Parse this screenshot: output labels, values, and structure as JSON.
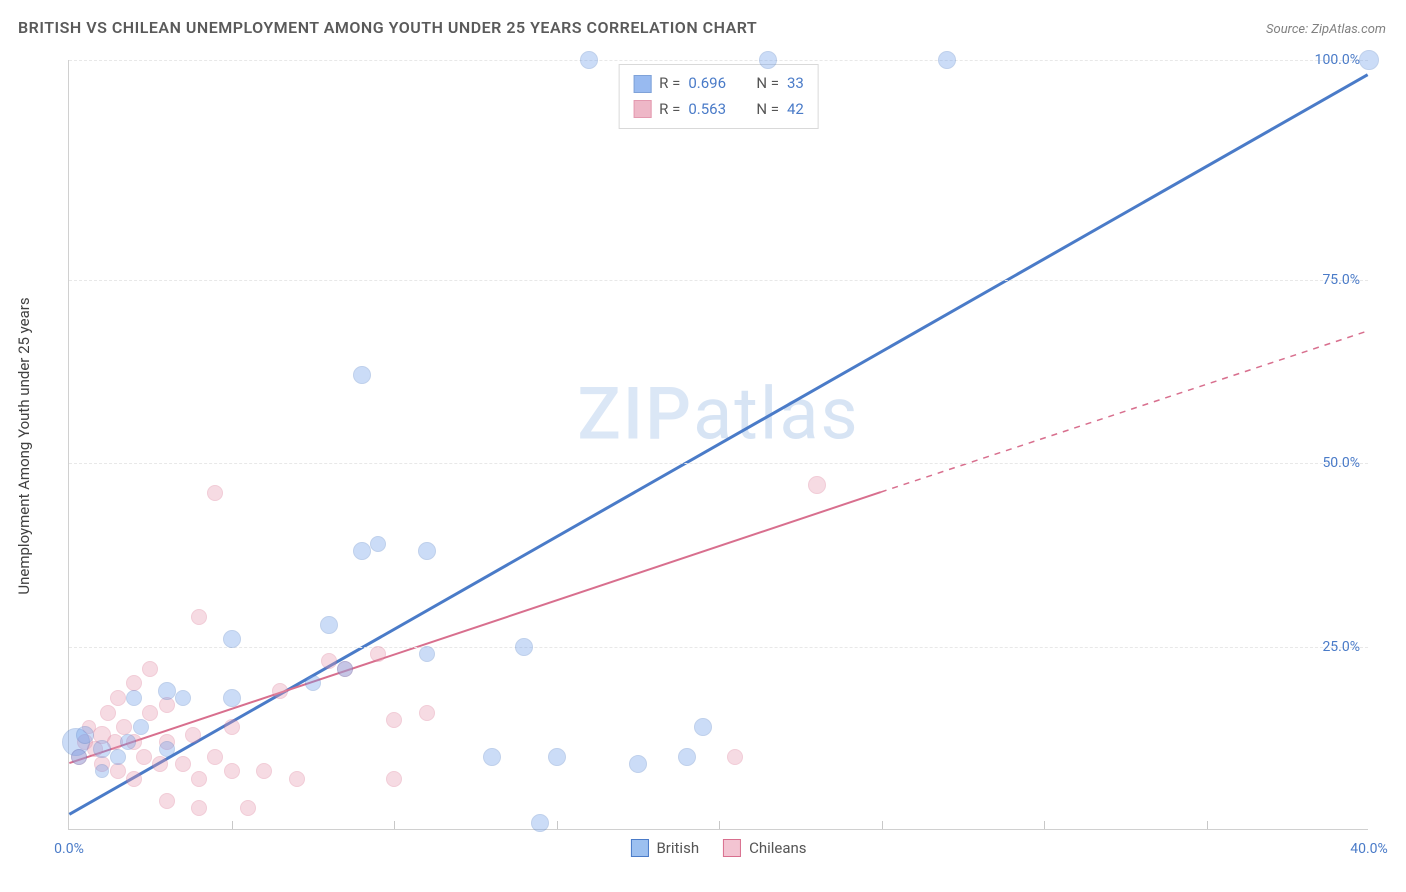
{
  "title": "BRITISH VS CHILEAN UNEMPLOYMENT AMONG YOUTH UNDER 25 YEARS CORRELATION CHART",
  "source": "Source: ZipAtlas.com",
  "ylabel": "Unemployment Among Youth under 25 years",
  "watermark_strong": "ZIP",
  "watermark_rest": "atlas",
  "chart": {
    "type": "scatter",
    "xlim": [
      0,
      40
    ],
    "ylim": [
      0,
      105
    ],
    "xticks": [
      0,
      40
    ],
    "xtick_labels": [
      "0.0%",
      "40.0%"
    ],
    "xminor": [
      5,
      10,
      15,
      20,
      25,
      30,
      35
    ],
    "ygrid": [
      25,
      50,
      75,
      105
    ],
    "ytick_labels": [
      "25.0%",
      "50.0%",
      "75.0%",
      "100.0%"
    ],
    "grid_color": "#e8e8e8",
    "tick_color": "#4a7bc8",
    "background": "#ffffff"
  },
  "series": {
    "british": {
      "label": "British",
      "color_fill": "#6d9eeb",
      "color_stroke": "#4a7bc8",
      "fill_opacity": 0.35,
      "R": "0.696",
      "N": "33",
      "trend": {
        "x1": 0,
        "y1": 2,
        "x2": 40,
        "y2": 103,
        "dashed_from_x": 40,
        "width": 3
      },
      "points": [
        {
          "x": 0.2,
          "y": 12,
          "r": 14
        },
        {
          "x": 0.3,
          "y": 10,
          "r": 8
        },
        {
          "x": 0.5,
          "y": 13,
          "r": 9
        },
        {
          "x": 1.0,
          "y": 11,
          "r": 9
        },
        {
          "x": 1.0,
          "y": 8,
          "r": 7
        },
        {
          "x": 1.5,
          "y": 10,
          "r": 8
        },
        {
          "x": 1.8,
          "y": 12,
          "r": 8
        },
        {
          "x": 2.2,
          "y": 14,
          "r": 8
        },
        {
          "x": 2.0,
          "y": 18,
          "r": 8
        },
        {
          "x": 3.0,
          "y": 11,
          "r": 8
        },
        {
          "x": 3.0,
          "y": 19,
          "r": 9
        },
        {
          "x": 3.5,
          "y": 18,
          "r": 8
        },
        {
          "x": 5.0,
          "y": 18,
          "r": 9
        },
        {
          "x": 5.0,
          "y": 26,
          "r": 9
        },
        {
          "x": 7.5,
          "y": 20,
          "r": 8
        },
        {
          "x": 8.0,
          "y": 28,
          "r": 9
        },
        {
          "x": 8.5,
          "y": 22,
          "r": 8
        },
        {
          "x": 9.0,
          "y": 38,
          "r": 9
        },
        {
          "x": 9.5,
          "y": 39,
          "r": 8
        },
        {
          "x": 9.0,
          "y": 62,
          "r": 9
        },
        {
          "x": 11.0,
          "y": 38,
          "r": 9
        },
        {
          "x": 11.0,
          "y": 24,
          "r": 8
        },
        {
          "x": 13.0,
          "y": 10,
          "r": 9
        },
        {
          "x": 14.0,
          "y": 25,
          "r": 9
        },
        {
          "x": 15.0,
          "y": 10,
          "r": 9
        },
        {
          "x": 14.5,
          "y": 1,
          "r": 9
        },
        {
          "x": 17.5,
          "y": 9,
          "r": 9
        },
        {
          "x": 19.5,
          "y": 14,
          "r": 9
        },
        {
          "x": 19.0,
          "y": 10,
          "r": 9
        },
        {
          "x": 16.0,
          "y": 105,
          "r": 9
        },
        {
          "x": 21.5,
          "y": 105,
          "r": 9
        },
        {
          "x": 27.0,
          "y": 105,
          "r": 9
        },
        {
          "x": 40.0,
          "y": 105,
          "r": 10
        }
      ]
    },
    "chileans": {
      "label": "Chileans",
      "color_fill": "#e89ab0",
      "color_stroke": "#d86f8e",
      "fill_opacity": 0.35,
      "R": "0.563",
      "N": "42",
      "trend": {
        "x1": 0,
        "y1": 9,
        "x2": 25,
        "y2": 46,
        "dashed_to_x": 40,
        "dashed_to_y": 68,
        "width": 2
      },
      "points": [
        {
          "x": 0.3,
          "y": 10,
          "r": 8
        },
        {
          "x": 0.5,
          "y": 12,
          "r": 8
        },
        {
          "x": 0.6,
          "y": 14,
          "r": 7
        },
        {
          "x": 0.8,
          "y": 11,
          "r": 8
        },
        {
          "x": 1.0,
          "y": 13,
          "r": 9
        },
        {
          "x": 1.0,
          "y": 9,
          "r": 8
        },
        {
          "x": 1.2,
          "y": 16,
          "r": 8
        },
        {
          "x": 1.4,
          "y": 12,
          "r": 8
        },
        {
          "x": 1.5,
          "y": 18,
          "r": 8
        },
        {
          "x": 1.5,
          "y": 8,
          "r": 8
        },
        {
          "x": 1.7,
          "y": 14,
          "r": 8
        },
        {
          "x": 2.0,
          "y": 12,
          "r": 8
        },
        {
          "x": 2.0,
          "y": 20,
          "r": 8
        },
        {
          "x": 2.0,
          "y": 7,
          "r": 8
        },
        {
          "x": 2.3,
          "y": 10,
          "r": 8
        },
        {
          "x": 2.5,
          "y": 16,
          "r": 8
        },
        {
          "x": 2.5,
          "y": 22,
          "r": 8
        },
        {
          "x": 2.8,
          "y": 9,
          "r": 8
        },
        {
          "x": 3.0,
          "y": 12,
          "r": 8
        },
        {
          "x": 3.0,
          "y": 17,
          "r": 8
        },
        {
          "x": 3.0,
          "y": 4,
          "r": 8
        },
        {
          "x": 3.5,
          "y": 9,
          "r": 8
        },
        {
          "x": 3.8,
          "y": 13,
          "r": 8
        },
        {
          "x": 4.0,
          "y": 7,
          "r": 8
        },
        {
          "x": 4.0,
          "y": 3,
          "r": 8
        },
        {
          "x": 4.5,
          "y": 10,
          "r": 8
        },
        {
          "x": 4.0,
          "y": 29,
          "r": 8
        },
        {
          "x": 4.5,
          "y": 46,
          "r": 8
        },
        {
          "x": 5.0,
          "y": 14,
          "r": 8
        },
        {
          "x": 5.0,
          "y": 8,
          "r": 8
        },
        {
          "x": 5.5,
          "y": 3,
          "r": 8
        },
        {
          "x": 6.0,
          "y": 8,
          "r": 8
        },
        {
          "x": 6.5,
          "y": 19,
          "r": 8
        },
        {
          "x": 7.0,
          "y": 7,
          "r": 8
        },
        {
          "x": 8.0,
          "y": 23,
          "r": 8
        },
        {
          "x": 8.5,
          "y": 22,
          "r": 8
        },
        {
          "x": 9.5,
          "y": 24,
          "r": 8
        },
        {
          "x": 10.0,
          "y": 7,
          "r": 8
        },
        {
          "x": 10.0,
          "y": 15,
          "r": 8
        },
        {
          "x": 11.0,
          "y": 16,
          "r": 8
        },
        {
          "x": 20.5,
          "y": 10,
          "r": 8
        },
        {
          "x": 23.0,
          "y": 47,
          "r": 9
        }
      ]
    }
  },
  "legend_bottom": [
    {
      "label": "British",
      "fill": "#9cc0f0",
      "stroke": "#4a7bc8"
    },
    {
      "label": "Chileans",
      "fill": "#f3c4d2",
      "stroke": "#d86f8e"
    }
  ]
}
